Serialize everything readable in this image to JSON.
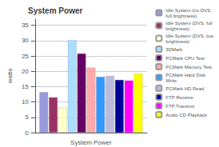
{
  "chart_data": {
    "type": "bar",
    "title": "System Power",
    "ylabel": "watts",
    "categories": [
      "System Power"
    ],
    "series": [
      {
        "name": "Idle System (no DVS,\nfull brightness)",
        "color": "#9999dd",
        "values": [
          13.2
        ]
      },
      {
        "name": "Idle System (DVS, full\nbrightness)",
        "color": "#993366",
        "values": [
          11.5
        ]
      },
      {
        "name": "Idle System (DVS, low\nbrightness)",
        "color": "#ffffcc",
        "values": [
          8.2
        ]
      },
      {
        "name": "3DMark",
        "color": "#aaddff",
        "values": [
          30.2
        ]
      },
      {
        "name": "PCMark CPU Test",
        "color": "#660066",
        "values": [
          25.8
        ]
      },
      {
        "name": "PCMark Memory Test",
        "color": "#ffaaaa",
        "values": [
          21.2
        ]
      },
      {
        "name": "PCMark Hard Disk\nWrite",
        "color": "#3399ff",
        "values": [
          18.2
        ]
      },
      {
        "name": "PCMark HD Read",
        "color": "#bbbbdd",
        "values": [
          18.5
        ]
      },
      {
        "name": "FTP Receive",
        "color": "#000099",
        "values": [
          17.2
        ]
      },
      {
        "name": "FTP Transmit",
        "color": "#ff00ff",
        "values": [
          17.0
        ]
      },
      {
        "name": "Audio CD Playback",
        "color": "#ffff00",
        "values": [
          19.2
        ]
      }
    ],
    "ylim": [
      0,
      37
    ],
    "yticks": [
      0,
      5,
      10,
      15,
      20,
      25,
      30,
      35
    ],
    "grid": true,
    "legend": "right"
  }
}
